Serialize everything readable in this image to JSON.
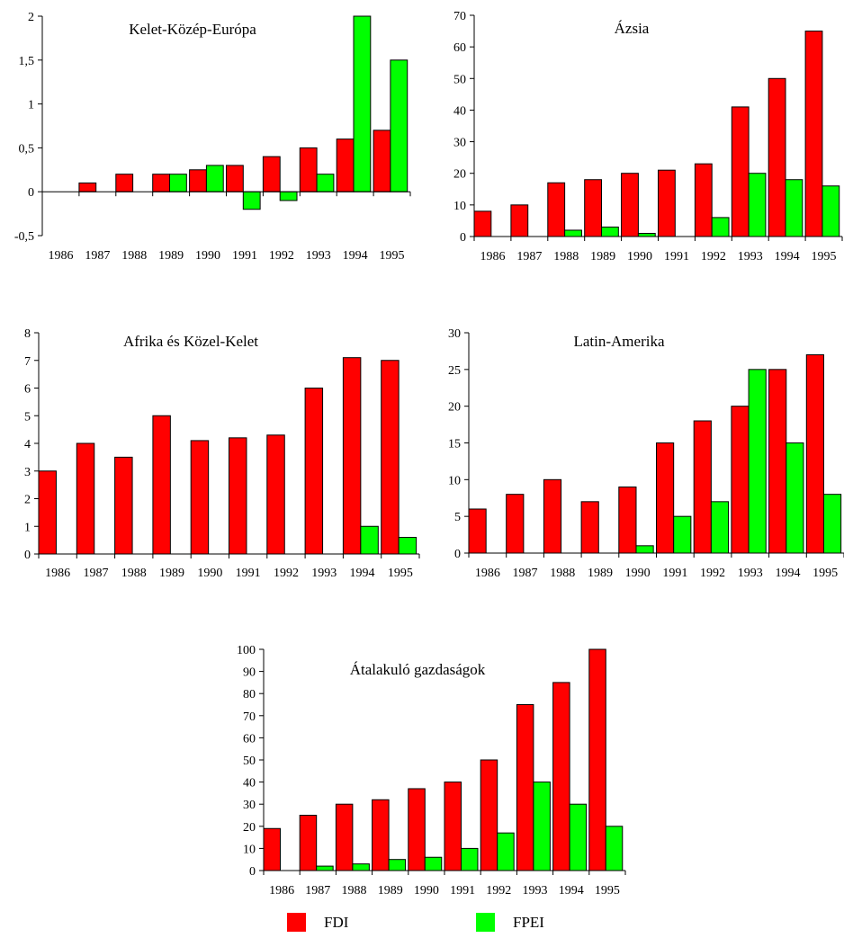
{
  "colors": {
    "fdi": "#ff0000",
    "fpei": "#00ff00",
    "axis": "#000000"
  },
  "legend": [
    {
      "key": "fdi",
      "label": "FDI"
    },
    {
      "key": "fpei",
      "label": "FPEI"
    }
  ],
  "chart_data": [
    {
      "type": "bar",
      "title": "Kelet-Közép-Európa",
      "categories": [
        "1986",
        "1987",
        "1988",
        "1989",
        "1990",
        "1991",
        "1992",
        "1993",
        "1994",
        "1995"
      ],
      "ylim": [
        -0.5,
        2
      ],
      "yticks": [
        -0.5,
        0,
        0.5,
        1,
        1.5,
        2
      ],
      "ytick_labels": [
        "-0,5",
        "0",
        "0,5",
        "1",
        "1,5",
        "2"
      ],
      "series": [
        {
          "name": "FDI",
          "values": [
            0,
            0.1,
            0.2,
            0.2,
            0.25,
            0.3,
            0.4,
            0.5,
            0.6,
            0.7
          ]
        },
        {
          "name": "FPEI",
          "values": [
            0,
            0,
            0,
            0.2,
            0.3,
            -0.2,
            -0.1,
            0.2,
            2.0,
            1.5
          ]
        }
      ]
    },
    {
      "type": "bar",
      "title": "Ázsia",
      "categories": [
        "1986",
        "1987",
        "1988",
        "1989",
        "1990",
        "1991",
        "1992",
        "1993",
        "1994",
        "1995"
      ],
      "ylim": [
        0,
        70
      ],
      "yticks": [
        0,
        10,
        20,
        30,
        40,
        50,
        60,
        70
      ],
      "ytick_labels": [
        "0",
        "10",
        "20",
        "30",
        "40",
        "50",
        "60",
        "70"
      ],
      "series": [
        {
          "name": "FDI",
          "values": [
            8,
            10,
            17,
            18,
            20,
            21,
            23,
            41,
            50,
            65
          ]
        },
        {
          "name": "FPEI",
          "values": [
            0,
            0,
            2,
            3,
            1,
            0,
            6,
            20,
            18,
            16
          ]
        }
      ]
    },
    {
      "type": "bar",
      "title": "Afrika és Közel-Kelet",
      "categories": [
        "1986",
        "1987",
        "1988",
        "1989",
        "1990",
        "1991",
        "1992",
        "1993",
        "1994",
        "1995"
      ],
      "ylim": [
        0,
        8
      ],
      "yticks": [
        0,
        1,
        2,
        3,
        4,
        5,
        6,
        7,
        8
      ],
      "ytick_labels": [
        "0",
        "1",
        "2",
        "3",
        "4",
        "5",
        "6",
        "7",
        "8"
      ],
      "series": [
        {
          "name": "FDI",
          "values": [
            3,
            4,
            3.5,
            5,
            4.1,
            4.2,
            4.3,
            6,
            7.1,
            7
          ]
        },
        {
          "name": "FPEI",
          "values": [
            0,
            0,
            0,
            0,
            0,
            0,
            0,
            0,
            1,
            0.6
          ]
        }
      ]
    },
    {
      "type": "bar",
      "title": "Latin-Amerika",
      "categories": [
        "1986",
        "1987",
        "1988",
        "1989",
        "1990",
        "1991",
        "1992",
        "1993",
        "1994",
        "1995"
      ],
      "ylim": [
        0,
        30
      ],
      "yticks": [
        0,
        5,
        10,
        15,
        20,
        25,
        30
      ],
      "ytick_labels": [
        "0",
        "5",
        "10",
        "15",
        "20",
        "25",
        "30"
      ],
      "series": [
        {
          "name": "FDI",
          "values": [
            6,
            8,
            10,
            7,
            9,
            15,
            18,
            20,
            25,
            27
          ]
        },
        {
          "name": "FPEI",
          "values": [
            0,
            0,
            0,
            0,
            1,
            5,
            7,
            25,
            15,
            8
          ]
        }
      ]
    },
    {
      "type": "bar",
      "title": "Átalakuló gazdaságok",
      "categories": [
        "1986",
        "1987",
        "1988",
        "1989",
        "1990",
        "1991",
        "1992",
        "1993",
        "1994",
        "1995"
      ],
      "ylim": [
        0,
        100
      ],
      "yticks": [
        0,
        10,
        20,
        30,
        40,
        50,
        60,
        70,
        80,
        90,
        100
      ],
      "ytick_labels": [
        "0",
        "10",
        "20",
        "30",
        "40",
        "50",
        "60",
        "70",
        "80",
        "90",
        "100"
      ],
      "series": [
        {
          "name": "FDI",
          "values": [
            19,
            25,
            30,
            32,
            37,
            40,
            50,
            75,
            85,
            100
          ]
        },
        {
          "name": "FPEI",
          "values": [
            0,
            2,
            3,
            5,
            6,
            10,
            17,
            40,
            30,
            20
          ]
        }
      ]
    }
  ]
}
